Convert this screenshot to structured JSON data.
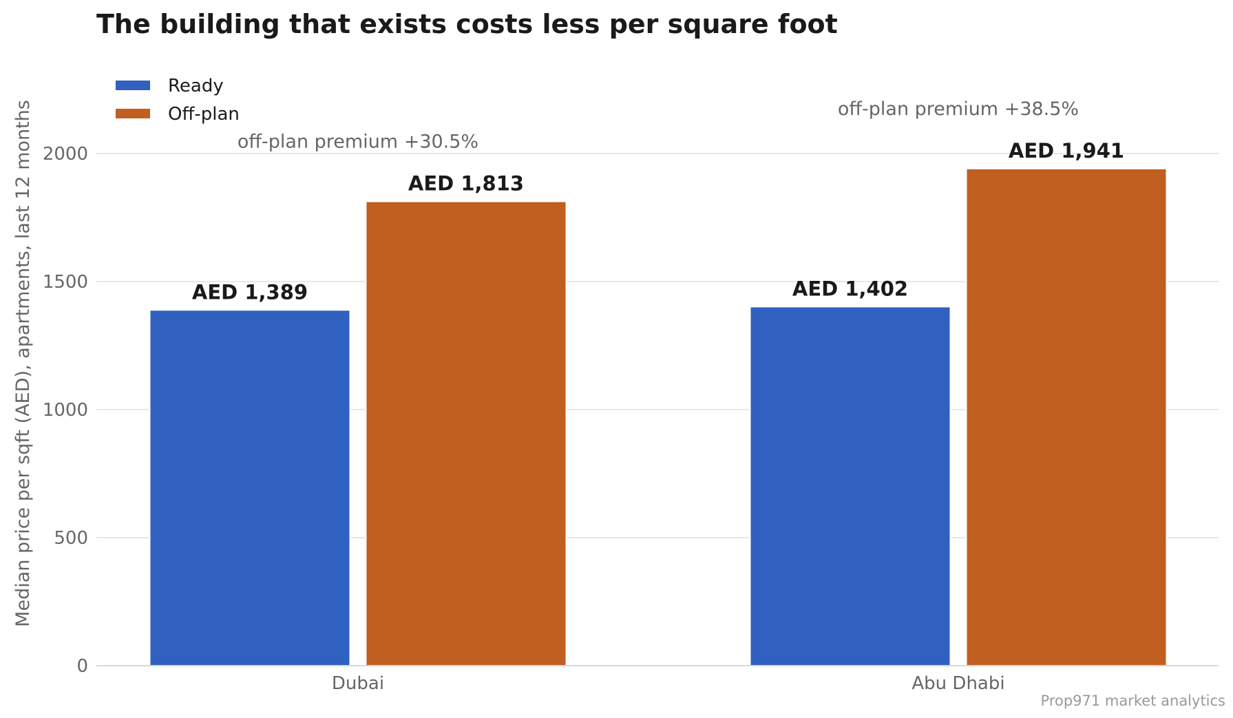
{
  "chart_data": {
    "type": "bar",
    "title": "The building that exists costs less per square foot",
    "ylabel": "Median price per sqft (AED), apartments, last 12 months",
    "xlabel": "",
    "categories": [
      "Dubai",
      "Abu Dhabi"
    ],
    "series": [
      {
        "name": "Ready",
        "color": "#3060c0",
        "values": [
          1389,
          1402
        ],
        "labels": [
          "AED 1,389",
          "AED 1,402"
        ]
      },
      {
        "name": "Off-plan",
        "color": "#c05f20",
        "values": [
          1813,
          1941
        ],
        "labels": [
          "AED 1,813",
          "AED 1,941"
        ]
      }
    ],
    "annotations": [
      "off-plan premium +30.5%",
      "off-plan premium +38.5%"
    ],
    "yticks": [
      0,
      500,
      1000,
      1500,
      2000
    ],
    "ylim": [
      0,
      2300
    ],
    "grid": true,
    "legend_position": "top-left",
    "source": "Prop971 market analytics"
  }
}
